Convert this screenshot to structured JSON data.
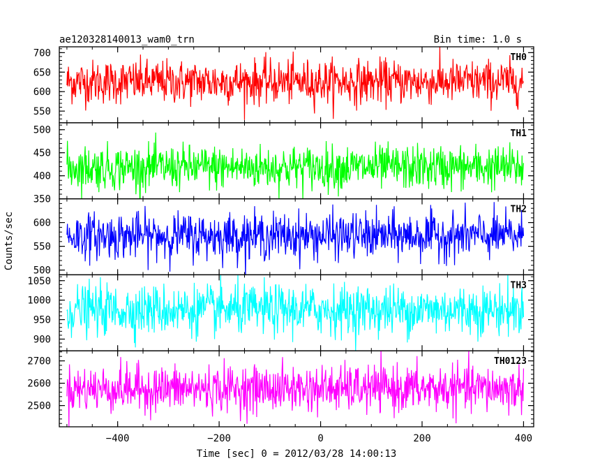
{
  "header": {
    "left_title": "ae120328140013_wam0_trn",
    "right_title": "Bin time: 1.0 s"
  },
  "chart_data": {
    "type": "line",
    "title": "ae120328140013_wam0_trn",
    "subtitle": "Bin time: 1.0 s",
    "xlabel": "Time [sec] 0 = 2012/03/28 14:00:13",
    "ylabel": "Counts/sec",
    "xlim": [
      -515,
      420
    ],
    "x_range": [
      -500,
      400
    ],
    "x_step": 1,
    "xticks": [
      -400,
      -200,
      0,
      200,
      400
    ],
    "xtick_labels": [
      "−400",
      "−200",
      "0",
      "200",
      "400"
    ],
    "grid": false,
    "panels": [
      {
        "name": "TH0",
        "color": "#ff0000",
        "ylim": [
          520,
          715
        ],
        "yticks": [
          550,
          600,
          650,
          700
        ],
        "ytick_labels": [
          "550",
          "600",
          "650",
          "700"
        ],
        "mean": 625,
        "sd": 28
      },
      {
        "name": "TH1",
        "color": "#00ff00",
        "ylim": [
          350,
          515
        ],
        "yticks": [
          350,
          400,
          450,
          500
        ],
        "ytick_labels": [
          "350",
          "400",
          "450",
          "500"
        ],
        "mean": 418,
        "sd": 24
      },
      {
        "name": "TH2",
        "color": "#0000ff",
        "ylim": [
          490,
          650
        ],
        "yticks": [
          500,
          550,
          600
        ],
        "ytick_labels": [
          "500",
          "550",
          "600"
        ],
        "mean": 572,
        "sd": 24
      },
      {
        "name": "TH3",
        "color": "#00ffff",
        "ylim": [
          870,
          1065
        ],
        "yticks": [
          900,
          950,
          1000,
          1050
        ],
        "ytick_labels": [
          "900",
          "950",
          "1000",
          "1050"
        ],
        "mean": 975,
        "sd": 32
      },
      {
        "name": "TH0123",
        "color": "#ff00ff",
        "ylim": [
          2405,
          2745
        ],
        "yticks": [
          2500,
          2600,
          2700
        ],
        "ytick_labels": [
          "2500",
          "2600",
          "2700"
        ],
        "mean": 2575,
        "sd": 52
      }
    ]
  }
}
